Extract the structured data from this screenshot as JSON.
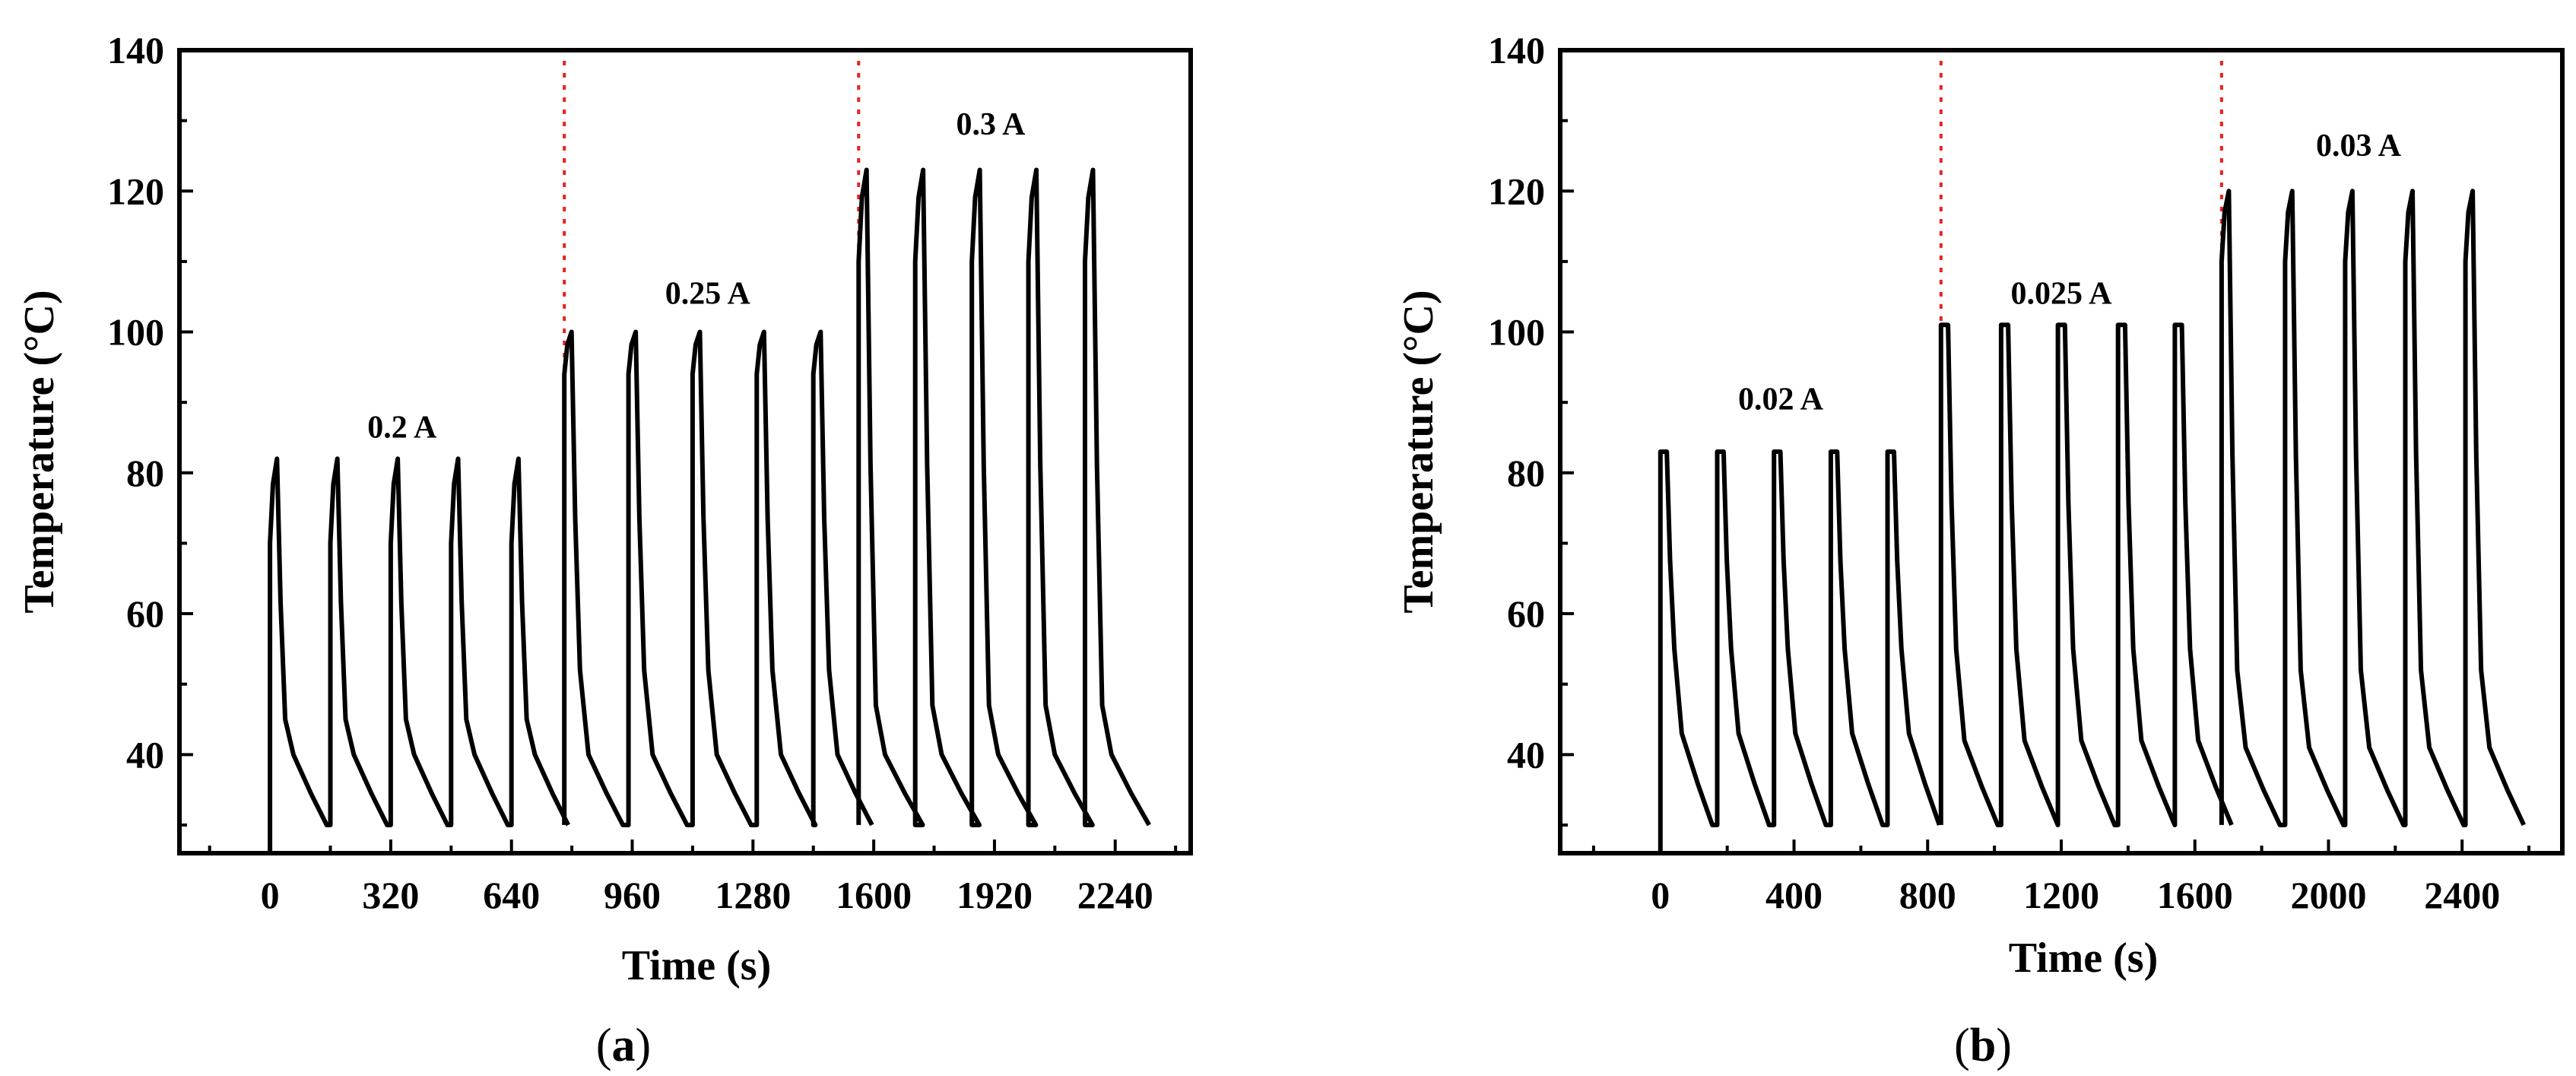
{
  "chart_data": [
    {
      "type": "line",
      "panel_label": "a",
      "xlabel": "Time (s)",
      "ylabel": "Temperature (°C)",
      "xlim": [
        -240,
        2440
      ],
      "ylim": [
        26,
        140
      ],
      "xticks": [
        0,
        320,
        640,
        960,
        1280,
        1600,
        1920,
        2240
      ],
      "yticks": [
        40,
        60,
        80,
        100,
        120,
        140
      ],
      "dividers": [
        780,
        1560
      ],
      "annotations": [
        {
          "text": "0.2 A",
          "x": 350,
          "y": 85
        },
        {
          "text": "0.25 A",
          "x": 1160,
          "y": 104
        },
        {
          "text": "0.3 A",
          "x": 1910,
          "y": 128
        }
      ],
      "segments": [
        {
          "current": "0.2 A",
          "starts": [
            0,
            160,
            320,
            480,
            640
          ],
          "period": 155,
          "peak": 82,
          "pre_peak": 70,
          "mid": 45,
          "knee": 40,
          "end": 30,
          "start_base": 26
        },
        {
          "current": "0.25 A",
          "starts": [
            780,
            950,
            1120,
            1290,
            1440
          ],
          "period": 160,
          "peak": 100,
          "pre_peak": 94,
          "mid": 52,
          "knee": 40,
          "end": 30,
          "start_base": 30
        },
        {
          "current": "0.3 A",
          "starts": [
            1560,
            1710,
            1860,
            2010,
            2160
          ],
          "period": 175,
          "peak": 123,
          "pre_peak": 110,
          "mid": 47,
          "knee": 40,
          "end": 30,
          "start_base": 30
        }
      ]
    },
    {
      "type": "line",
      "panel_label": "b",
      "xlabel": "Time (s)",
      "ylabel": "Temperature (°C)",
      "xlim": [
        -300,
        2700
      ],
      "ylim": [
        26,
        140
      ],
      "xticks": [
        0,
        400,
        800,
        1200,
        1600,
        2000,
        2400
      ],
      "yticks": [
        40,
        60,
        80,
        100,
        120,
        140
      ],
      "dividers": [
        840,
        1680
      ],
      "annotations": [
        {
          "text": "0.02 A",
          "x": 360,
          "y": 89
        },
        {
          "text": "0.025 A",
          "x": 1200,
          "y": 104
        },
        {
          "text": "0.03 A",
          "x": 2090,
          "y": 125
        }
      ],
      "segments": [
        {
          "current": "0.02 A",
          "starts": [
            0,
            170,
            340,
            510,
            680
          ],
          "period": 160,
          "peak": 83,
          "pre_peak": 83,
          "mid": 55,
          "knee": 43,
          "end": 30,
          "start_base": 26
        },
        {
          "current": "0.025 A",
          "starts": [
            840,
            1020,
            1190,
            1370,
            1540
          ],
          "period": 175,
          "peak": 101,
          "pre_peak": 101,
          "mid": 55,
          "knee": 42,
          "end": 30,
          "start_base": 30
        },
        {
          "current": "0.03 A",
          "starts": [
            1680,
            1870,
            2050,
            2230,
            2410
          ],
          "period": 180,
          "peak": 120,
          "pre_peak": 110,
          "mid": 52,
          "knee": 41,
          "end": 30,
          "start_base": 30
        }
      ]
    }
  ]
}
